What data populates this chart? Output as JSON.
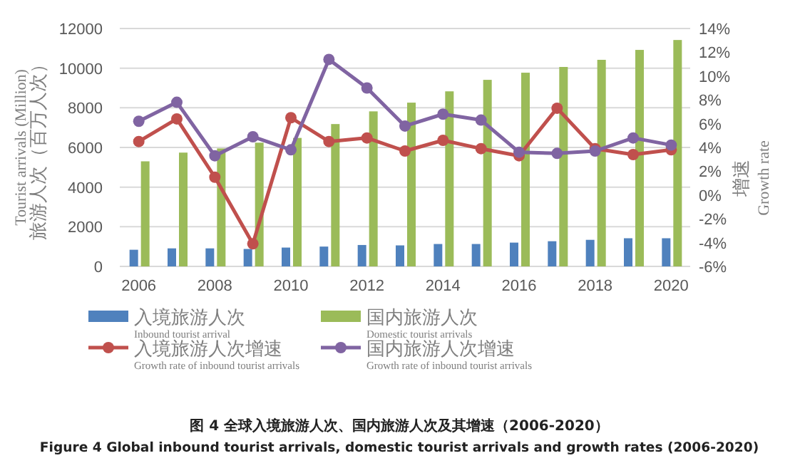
{
  "chart_data": {
    "type": "bar",
    "title": "图 4 全球入境旅游人次、国内旅游人次及其增速（2006-2020）",
    "subtitle": "Figure 4 Global inbound tourist arrivals, domestic tourist arrivals and growth rates (2006-2020)",
    "ylabel": "Tourist arrivals (Million)\n旅游人次（百万人次）",
    "y2label": "增速\nGrowth rate",
    "categories": [
      "2006",
      null,
      "2008",
      null,
      "2010",
      null,
      "2012",
      null,
      "2014",
      null,
      "2016",
      null,
      "2018",
      null,
      "2020"
    ],
    "series": [
      {
        "name": "入境旅游人次\nInbound tourist arrival",
        "color": "#4f81bd",
        "values": [
          840,
          910,
          910,
          880,
          950,
          1000,
          1080,
          1060,
          1130,
          1130,
          1200,
          1270,
          1340,
          1420,
          1420
        ]
      },
      {
        "name": "国内旅游人次\nDomestic tourist arrivals",
        "color": "#9bbb59",
        "values": [
          5300,
          5740,
          5950,
          6240,
          6480,
          7180,
          7820,
          8260,
          8830,
          9410,
          9770,
          10060,
          10420,
          10920,
          11420
        ]
      },
      {
        "name": "入境旅游人次增速\nGrowth rate of inbound tourist arrivals",
        "type": "line",
        "axis": "y2",
        "color": "#c0504d",
        "values": [
          4.5,
          6.4,
          1.5,
          -4.1,
          6.5,
          4.5,
          4.8,
          3.7,
          4.6,
          3.9,
          3.3,
          7.3,
          3.9,
          3.4,
          3.8
        ]
      },
      {
        "name": "国内旅游人次增速\nGrowth rate of inbound tourist arrivals",
        "type": "line",
        "axis": "y2",
        "color": "#8064a2",
        "values": [
          6.2,
          7.8,
          3.3,
          4.9,
          3.8,
          11.4,
          9.0,
          5.8,
          6.8,
          6.3,
          3.6,
          3.5,
          3.7,
          4.8,
          4.2
        ]
      }
    ],
    "ylim": [
      0,
      12000
    ],
    "yticks": [
      0,
      2000,
      4000,
      6000,
      8000,
      10000,
      12000
    ],
    "y2lim": [
      -6,
      14
    ],
    "y2ticks": [
      {
        "value": -6,
        "label": "-6%"
      },
      {
        "value": -4,
        "label": "-4%"
      },
      {
        "value": -2,
        "label": "-2%"
      },
      {
        "value": 0,
        "label": "0%"
      },
      {
        "value": 2,
        "label": "2%"
      },
      {
        "value": 4,
        "label": "4%"
      },
      {
        "value": 6,
        "label": "6%"
      },
      {
        "value": 8,
        "label": "8%"
      },
      {
        "value": 10,
        "label": "10%"
      },
      {
        "value": 12,
        "label": "12%"
      },
      {
        "value": 14,
        "label": "14%"
      }
    ],
    "grid": "y",
    "legend": "bottom",
    "marker": "circle",
    "line_style": "solid"
  }
}
